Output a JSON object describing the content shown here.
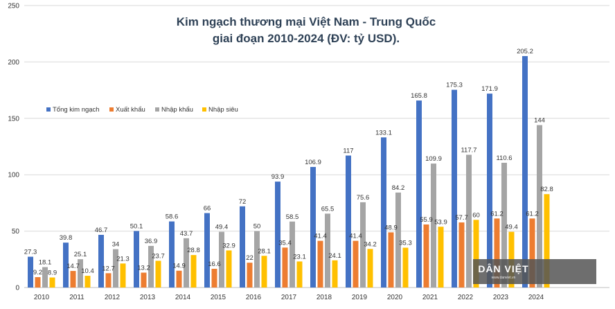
{
  "chart_data": {
    "type": "bar",
    "title_line1": "Kim ngạch thương mại Việt Nam - Trung Quốc",
    "title_line2": "giai đoạn 2010-2024 (ĐV: tỷ USD).",
    "categories": [
      "2010",
      "2011",
      "2012",
      "2013",
      "2014",
      "2015",
      "2016",
      "2017",
      "2018",
      "2019",
      "2020",
      "2021",
      "2022",
      "2023",
      "2024"
    ],
    "ylim": [
      0,
      250
    ],
    "yticks": [
      "0",
      "50",
      "100",
      "150",
      "200",
      "250"
    ],
    "grid": true,
    "legend_position": "left",
    "series": [
      {
        "name": "Tổng kim ngạch",
        "color": "#4472c4",
        "values": [
          27.3,
          39.8,
          46.7,
          50.1,
          58.6,
          66,
          72,
          93.9,
          106.9,
          117,
          133.1,
          165.8,
          175.3,
          171.9,
          205.2
        ]
      },
      {
        "name": "Xuất khẩu",
        "color": "#ed7d31",
        "values": [
          9.2,
          14.7,
          12.7,
          13.2,
          14.9,
          16.6,
          22,
          35.4,
          41.4,
          41.4,
          48.9,
          55.9,
          57.7,
          61.2,
          61.2
        ]
      },
      {
        "name": "Nhập khẩu",
        "color": "#a5a5a5",
        "values": [
          18.1,
          25.1,
          34,
          36.9,
          43.7,
          49.4,
          50,
          58.5,
          65.5,
          75.6,
          84.2,
          109.9,
          117.7,
          110.6,
          144
        ]
      },
      {
        "name": "Nhập siêu",
        "color": "#ffc000",
        "values": [
          8.9,
          10.4,
          21.3,
          23.7,
          28.8,
          32.9,
          28.1,
          23.1,
          24.1,
          34.2,
          35.3,
          53.9,
          60,
          49.4,
          82.8
        ]
      }
    ]
  },
  "watermark": {
    "brand": "DÂN VIỆT",
    "site": "www.danviet.vn"
  }
}
